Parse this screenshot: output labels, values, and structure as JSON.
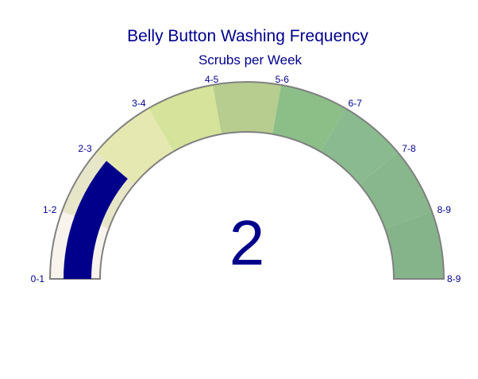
{
  "chart_data": {
    "type": "gauge",
    "title": "Belly Button Washing Frequency",
    "subtitle": "Scrubs per Week",
    "value": 2,
    "value_label": "2",
    "range": [
      0,
      9
    ],
    "bands": [
      {
        "label": "0-1",
        "from": 0,
        "to": 1,
        "color": "#f8f3ec"
      },
      {
        "label": "1-2",
        "from": 1,
        "to": 2,
        "color": "#e8e6c9"
      },
      {
        "label": "2-3",
        "from": 2,
        "to": 3,
        "color": "#e5e8b0"
      },
      {
        "label": "3-4",
        "from": 3,
        "to": 4,
        "color": "#d5e49a"
      },
      {
        "label": "4-5",
        "from": 4,
        "to": 5,
        "color": "#b7cd8f"
      },
      {
        "label": "5-6",
        "from": 5,
        "to": 6,
        "color": "#8cbf88"
      },
      {
        "label": "6-7",
        "from": 6,
        "to": 7,
        "color": "#8abb8f"
      },
      {
        "label": "7-8",
        "from": 7,
        "to": 8,
        "color": "#88b78b"
      },
      {
        "label": "8-9",
        "from": 8,
        "to": 9,
        "color": "#85b48a"
      }
    ],
    "end_label": "8-9",
    "colors": {
      "title": "#00008b",
      "bar": "#00008b",
      "outline": "#808080",
      "tick_label": "#00008b"
    }
  }
}
